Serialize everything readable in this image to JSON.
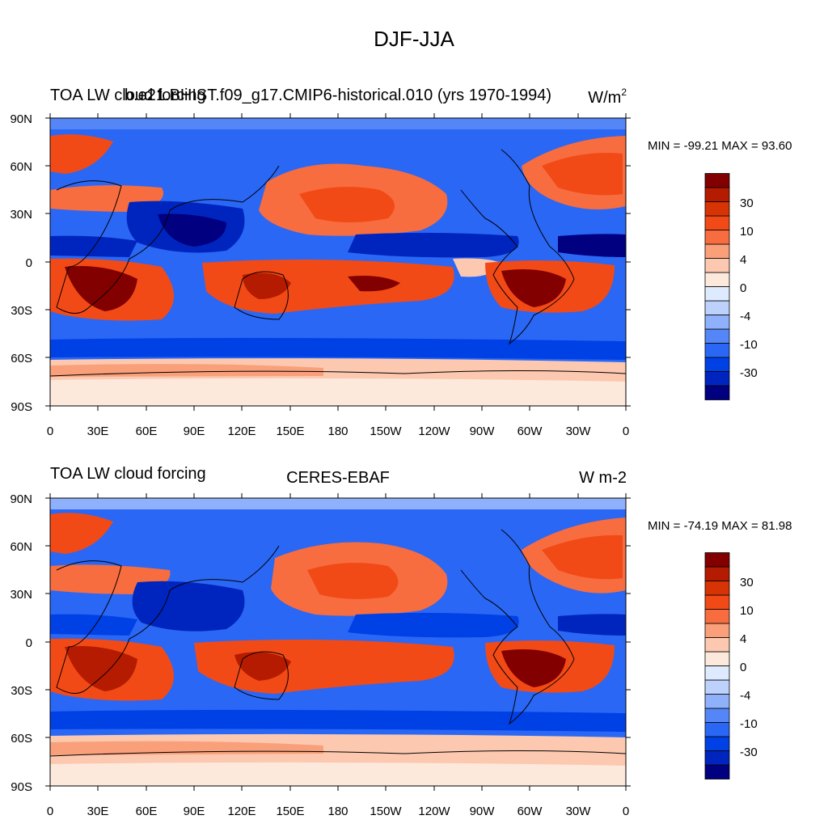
{
  "main_title": "DJF-JJA",
  "lon_ticks": [
    "0",
    "30E",
    "60E",
    "90E",
    "120E",
    "150E",
    "180",
    "150W",
    "120W",
    "90W",
    "60W",
    "30W",
    "0"
  ],
  "lat_ticks": [
    "90N",
    "60N",
    "30N",
    "0",
    "30S",
    "60S",
    "90S"
  ],
  "colorbar": {
    "labels": [
      "30",
      "10",
      "4",
      "0",
      "-4",
      "-10",
      "-30"
    ],
    "colors": [
      "#000080",
      "#0025bf",
      "#0041e6",
      "#2a67f5",
      "#5586f7",
      "#8fb0fb",
      "#bcd1fc",
      "#deeafd",
      "#fde9dc",
      "#fcc9b0",
      "#f9a07a",
      "#f76d3f",
      "#f24a16",
      "#d63404",
      "#b51b00",
      "#820000"
    ]
  },
  "chart_data": [
    {
      "type": "heatmap",
      "left_title": "TOA LW cloud forcing",
      "center_title": "b.e21.BHIST.f09_g17.CMIP6-historical.010 (yrs 1970-1994)",
      "units_base": "W/m",
      "units_sup": "2",
      "stats": "MIN = -99.21 MAX =  93.60",
      "min": -99.21,
      "max": 93.6,
      "contour_levels": [
        -40,
        -30,
        -20,
        -10,
        -6,
        -4,
        -2,
        0,
        2,
        4,
        6,
        10,
        20,
        30,
        40
      ],
      "x_range": [
        0,
        360
      ],
      "y_range": [
        -90,
        90
      ]
    },
    {
      "type": "heatmap",
      "left_title": "TOA LW cloud forcing",
      "center_title": "CERES-EBAF",
      "units": "W m-2",
      "stats": "MIN = -74.19 MAX =  81.98",
      "min": -74.19,
      "max": 81.98,
      "contour_levels": [
        -40,
        -30,
        -20,
        -10,
        -6,
        -4,
        -2,
        0,
        2,
        4,
        6,
        10,
        20,
        30,
        40
      ],
      "x_range": [
        0,
        360
      ],
      "y_range": [
        -90,
        90
      ]
    }
  ]
}
